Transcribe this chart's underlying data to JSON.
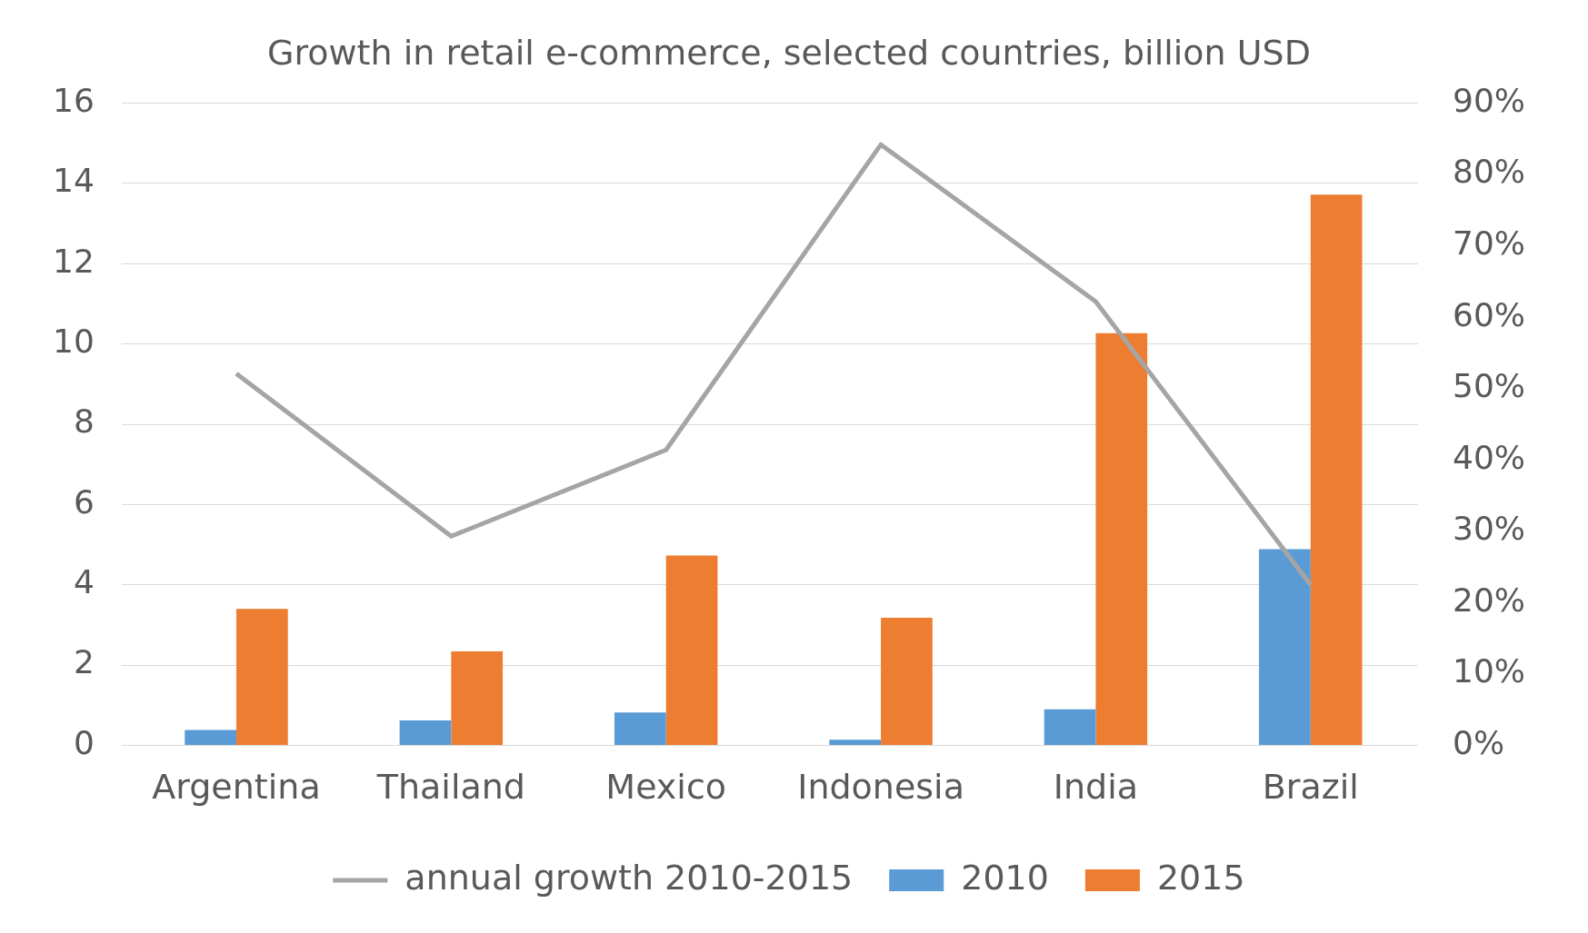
{
  "chart_data": {
    "type": "bar",
    "title": "Growth in retail e-commerce, selected countries, billion USD",
    "categories": [
      "Argentina",
      "Thailand",
      "Mexico",
      "Indonesia",
      "India",
      "Brazil"
    ],
    "series": [
      {
        "name": "2010",
        "color": "#5b9bd5",
        "values": [
          0.38,
          0.62,
          0.82,
          0.14,
          0.9,
          4.89
        ]
      },
      {
        "name": "2015",
        "color": "#ed7d31",
        "values": [
          3.4,
          2.34,
          4.73,
          3.18,
          10.27,
          13.72
        ]
      },
      {
        "name": "annual growth 2010-2015",
        "type": "line",
        "axis": "y2",
        "color": "#a5a5a5",
        "values": [
          52.1,
          29.3,
          41.4,
          84.2,
          62.2,
          22.5
        ]
      }
    ],
    "ylim": [
      0,
      16
    ],
    "yticks": [
      0,
      2,
      4,
      6,
      8,
      10,
      12,
      14,
      16
    ],
    "y2lim": [
      0,
      90
    ],
    "y2ticks": [
      {
        "value": 0,
        "label": "0%"
      },
      {
        "value": 10,
        "label": "10%"
      },
      {
        "value": 20,
        "label": "20%"
      },
      {
        "value": 30,
        "label": "30%"
      },
      {
        "value": 40,
        "label": "40%"
      },
      {
        "value": 50,
        "label": "50%"
      },
      {
        "value": 60,
        "label": "60%"
      },
      {
        "value": 70,
        "label": "70%"
      },
      {
        "value": 80,
        "label": "80%"
      },
      {
        "value": 90,
        "label": "90%"
      }
    ],
    "grid": "y",
    "legend": "bottom",
    "marker": "none",
    "line_style": "solid"
  }
}
